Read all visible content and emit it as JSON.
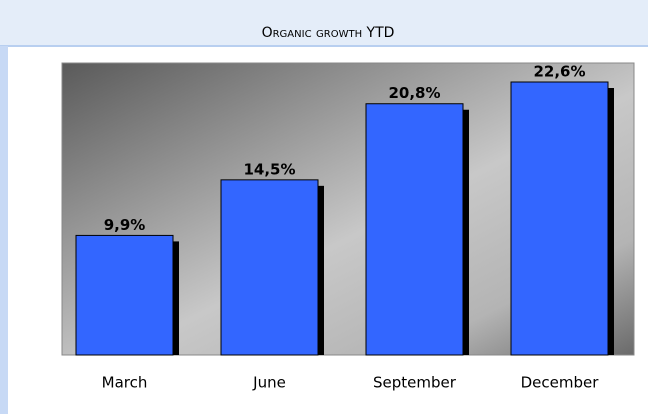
{
  "chart_data": {
    "type": "bar",
    "title": "Organic growth YTD",
    "categories": [
      "March",
      "June",
      "September",
      "December"
    ],
    "values": [
      9.9,
      14.5,
      20.8,
      22.6
    ],
    "value_labels": [
      "9,9%",
      "14,5%",
      "20,8%",
      "22,6%"
    ],
    "color": "#3366ff"
  }
}
